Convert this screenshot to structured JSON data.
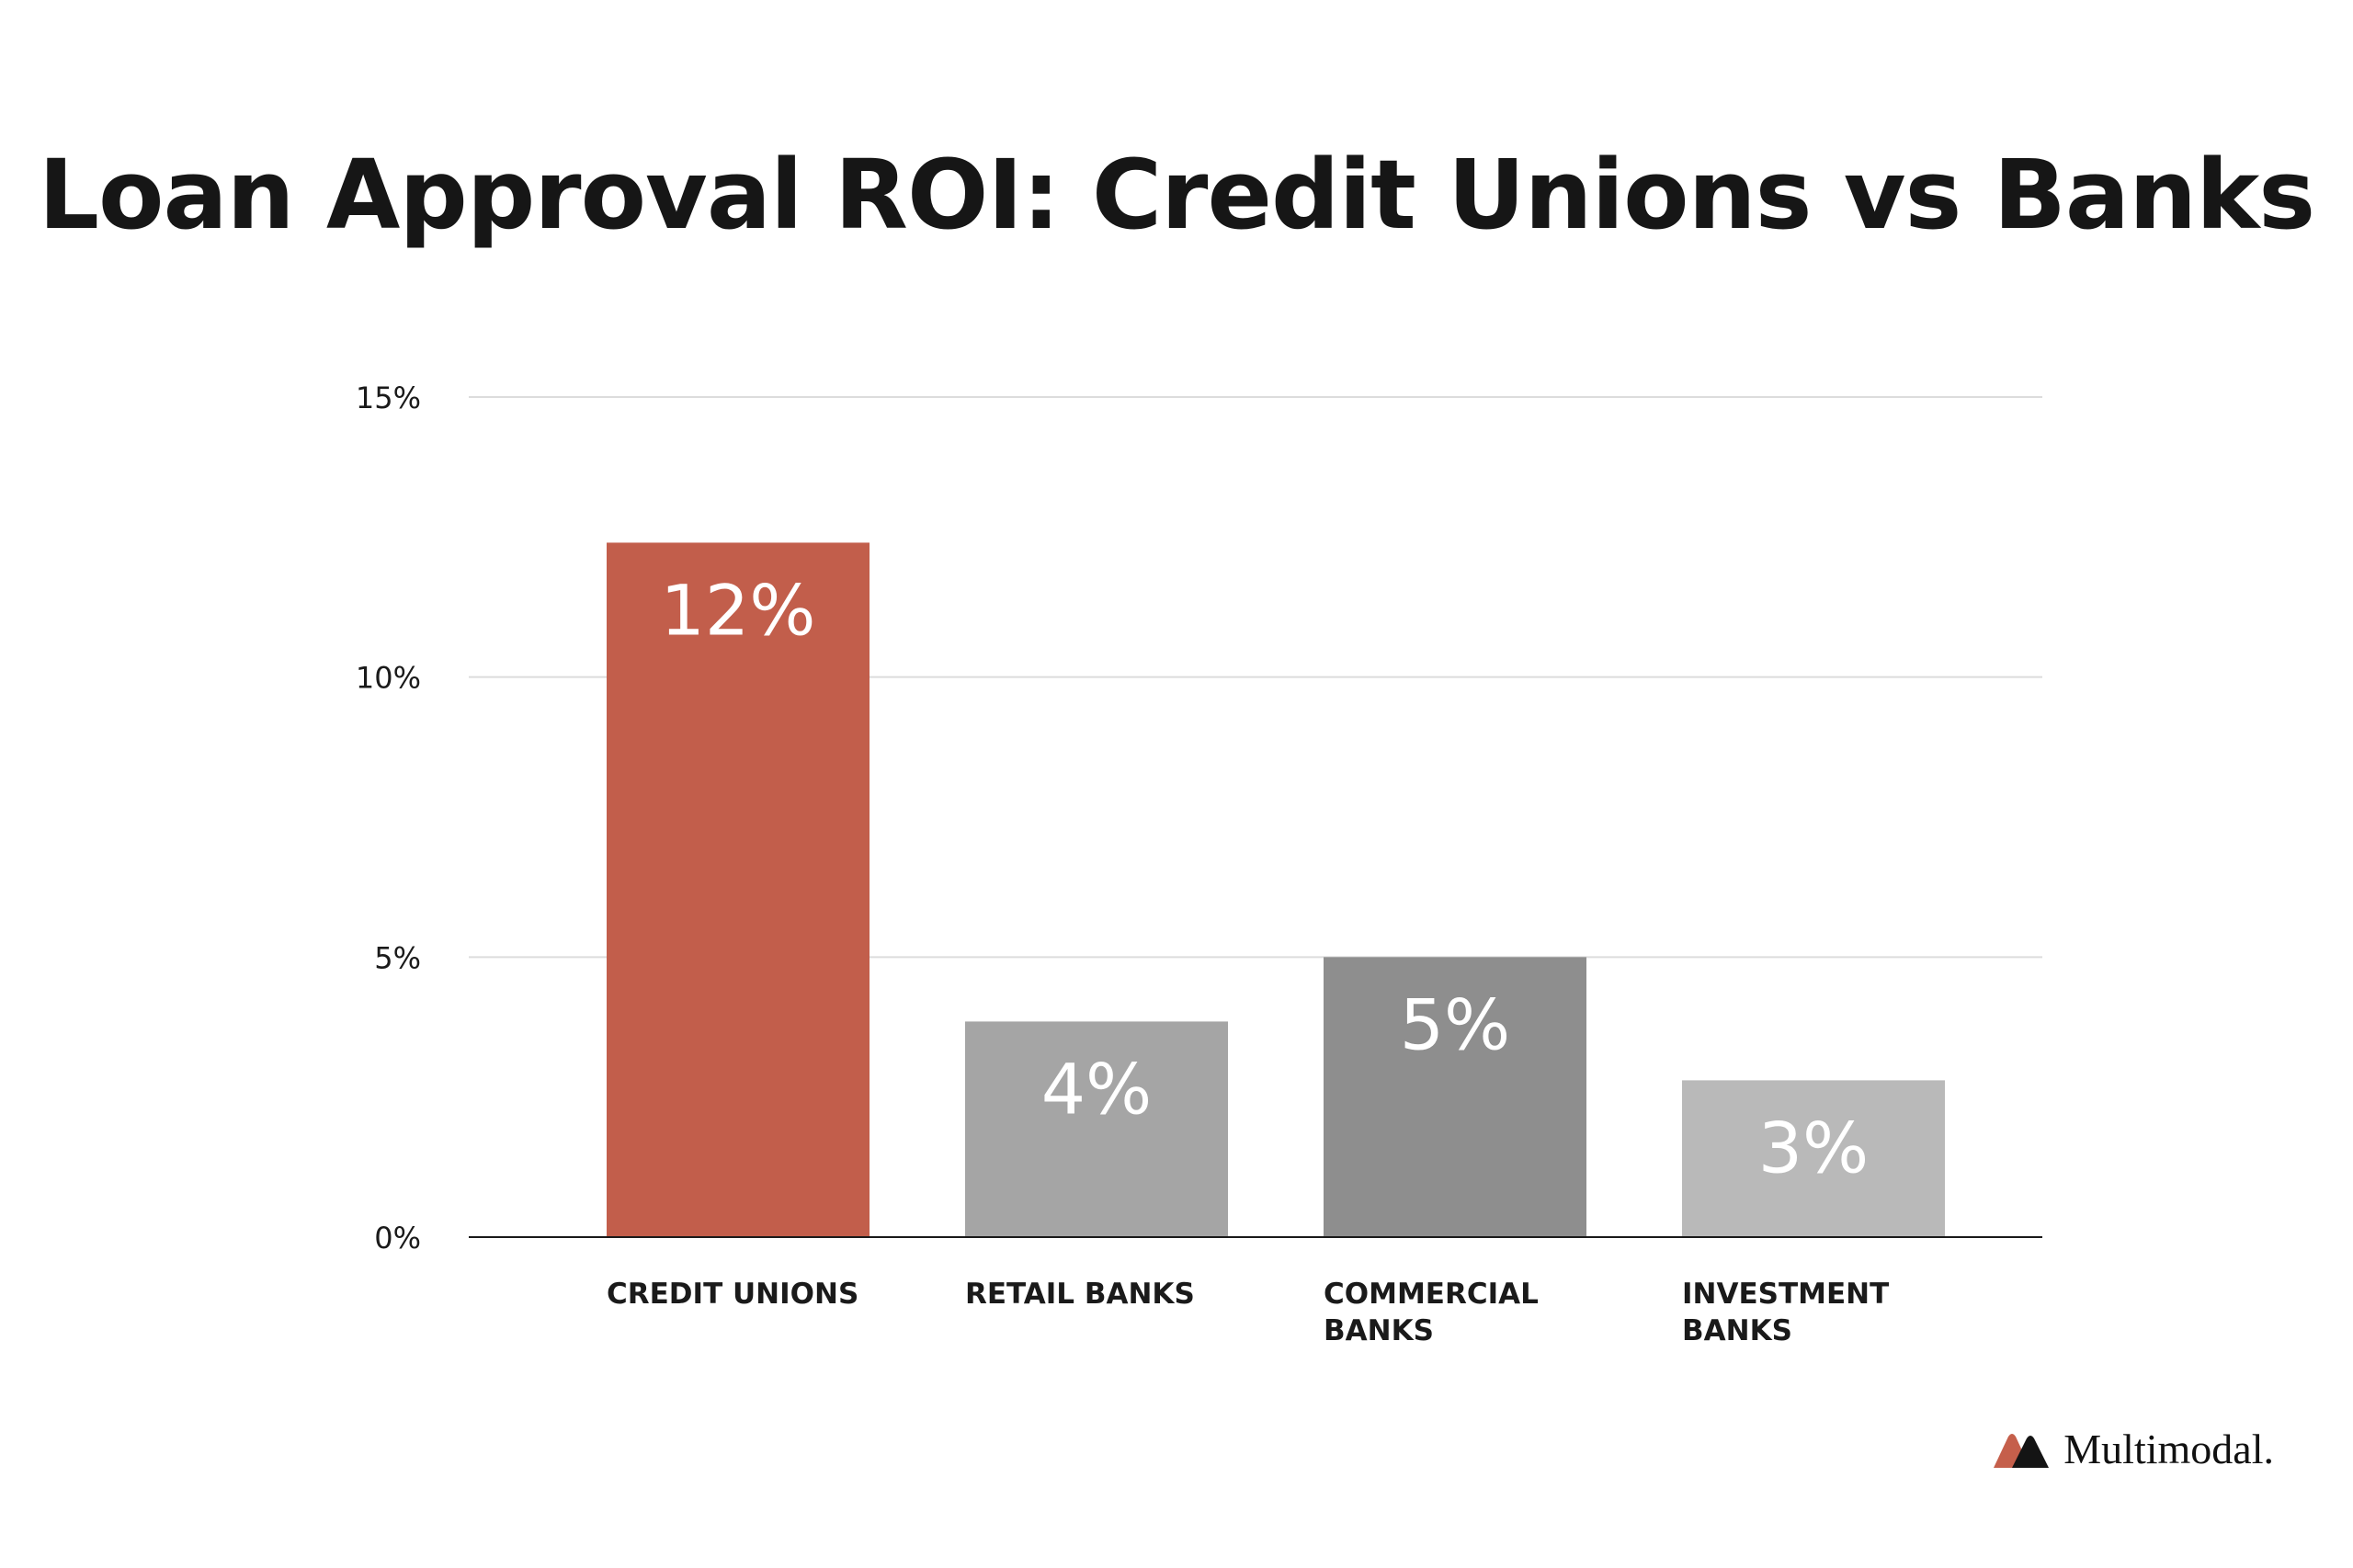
{
  "title": "Loan Approval ROI: Credit Unions vs Banks",
  "brand": {
    "name": "Multimodal.",
    "logo_icon": "multimodal-logo-icon",
    "logo_colors": [
      "#c55f4b",
      "#141414"
    ]
  },
  "chart_data": {
    "type": "bar",
    "title": "Loan Approval ROI: Credit Unions vs Banks",
    "xlabel": "",
    "ylabel": "",
    "categories": [
      "CREDIT UNIONS",
      "RETAIL BANKS",
      "COMMERCIAL BANKS",
      "INVESTMENT BANKS"
    ],
    "category_lines": [
      [
        "CREDIT UNIONS"
      ],
      [
        "RETAIL BANKS"
      ],
      [
        "COMMERCIAL",
        "BANKS"
      ],
      [
        "INVESTMENT",
        "BANKS"
      ]
    ],
    "values": [
      12.4,
      3.85,
      5.0,
      2.8
    ],
    "data_labels": [
      "12%",
      "4%",
      "5%",
      "3%"
    ],
    "colors": [
      "#c25e4b",
      "#a5a5a5",
      "#8e8e8e",
      "#b9b9b9"
    ],
    "ylim": [
      0,
      15
    ],
    "yticks": [
      0,
      5,
      10,
      15
    ],
    "ytick_labels": [
      "0%",
      "5%",
      "10%",
      "15%"
    ],
    "grid": true,
    "legend": "none"
  }
}
